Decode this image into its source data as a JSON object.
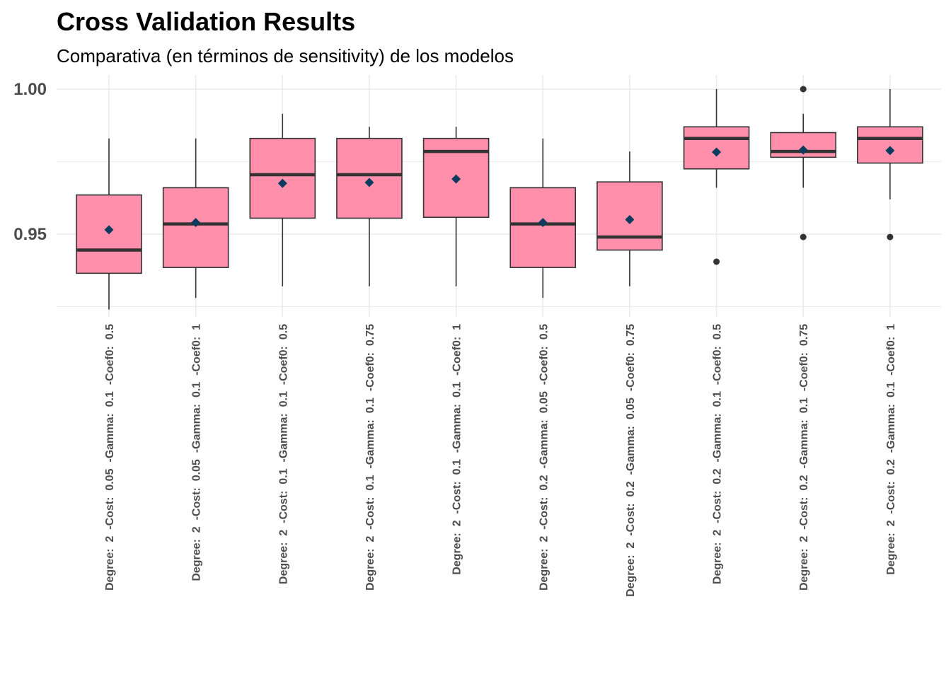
{
  "chart_data": {
    "type": "box",
    "title": "Cross Validation Results",
    "subtitle": "Comparativa (en términos de sensitivity) de los modelos",
    "xlabel": "",
    "ylabel": "",
    "ylim": [
      0.924,
      1.004
    ],
    "yticks": [
      0.95,
      1.0
    ],
    "ytick_labels": [
      "0.95",
      "1.00"
    ],
    "grid": true,
    "colors": {
      "box_fill": "#FF8FAB",
      "box_edge": "#333333",
      "median": "#333333",
      "mean_marker": "#0D3B5E",
      "outlier": "#333333",
      "grid": "#EBEBEB"
    },
    "categories": [
      "Degree:  2  -Cost:  0.05  -Gamma:  0.1  -Coef0:  0.5",
      "Degree:  2  -Cost:  0.05  -Gamma:  0.1  -Coef0:  1",
      "Degree:  2  -Cost:  0.1  -Gamma:  0.1  -Coef0:  0.5",
      "Degree:  2  -Cost:  0.1  -Gamma:  0.1  -Coef0:  0.75",
      "Degree:  2  -Cost:  0.1  -Gamma:  0.1  -Coef0:  1",
      "Degree:  2  -Cost:  0.2  -Gamma:  0.05  -Coef0:  0.5",
      "Degree:  2  -Cost:  0.2  -Gamma:  0.05  -Coef0:  0.75",
      "Degree:  2  -Cost:  0.2  -Gamma:  0.1  -Coef0:  0.5",
      "Degree:  2  -Cost:  0.2  -Gamma:  0.1  -Coef0:  0.75",
      "Degree:  2  -Cost:  0.2  -Gamma:  0.1  -Coef0:  1"
    ],
    "boxes": [
      {
        "whisker_low": 0.924,
        "q1": 0.9365,
        "median": 0.9445,
        "q3": 0.9635,
        "whisker_high": 0.983,
        "mean": 0.9515,
        "outliers": []
      },
      {
        "whisker_low": 0.928,
        "q1": 0.9385,
        "median": 0.9535,
        "q3": 0.966,
        "whisker_high": 0.983,
        "mean": 0.954,
        "outliers": []
      },
      {
        "whisker_low": 0.932,
        "q1": 0.9555,
        "median": 0.9705,
        "q3": 0.983,
        "whisker_high": 0.9915,
        "mean": 0.9675,
        "outliers": []
      },
      {
        "whisker_low": 0.932,
        "q1": 0.9555,
        "median": 0.9705,
        "q3": 0.983,
        "whisker_high": 0.987,
        "mean": 0.9678,
        "outliers": []
      },
      {
        "whisker_low": 0.932,
        "q1": 0.9558,
        "median": 0.9785,
        "q3": 0.983,
        "whisker_high": 0.987,
        "mean": 0.969,
        "outliers": []
      },
      {
        "whisker_low": 0.928,
        "q1": 0.9385,
        "median": 0.9535,
        "q3": 0.966,
        "whisker_high": 0.983,
        "mean": 0.954,
        "outliers": []
      },
      {
        "whisker_low": 0.932,
        "q1": 0.9445,
        "median": 0.949,
        "q3": 0.968,
        "whisker_high": 0.9785,
        "mean": 0.955,
        "outliers": []
      },
      {
        "whisker_low": 0.966,
        "q1": 0.9725,
        "median": 0.983,
        "q3": 0.987,
        "whisker_high": 1.0,
        "mean": 0.9783,
        "outliers": [
          0.9405
        ]
      },
      {
        "whisker_low": 0.966,
        "q1": 0.9765,
        "median": 0.9785,
        "q3": 0.985,
        "whisker_high": 0.9915,
        "mean": 0.979,
        "outliers": [
          1.0,
          0.949
        ]
      },
      {
        "whisker_low": 0.962,
        "q1": 0.9745,
        "median": 0.983,
        "q3": 0.987,
        "whisker_high": 1.0,
        "mean": 0.9788,
        "outliers": [
          0.949
        ]
      }
    ]
  }
}
